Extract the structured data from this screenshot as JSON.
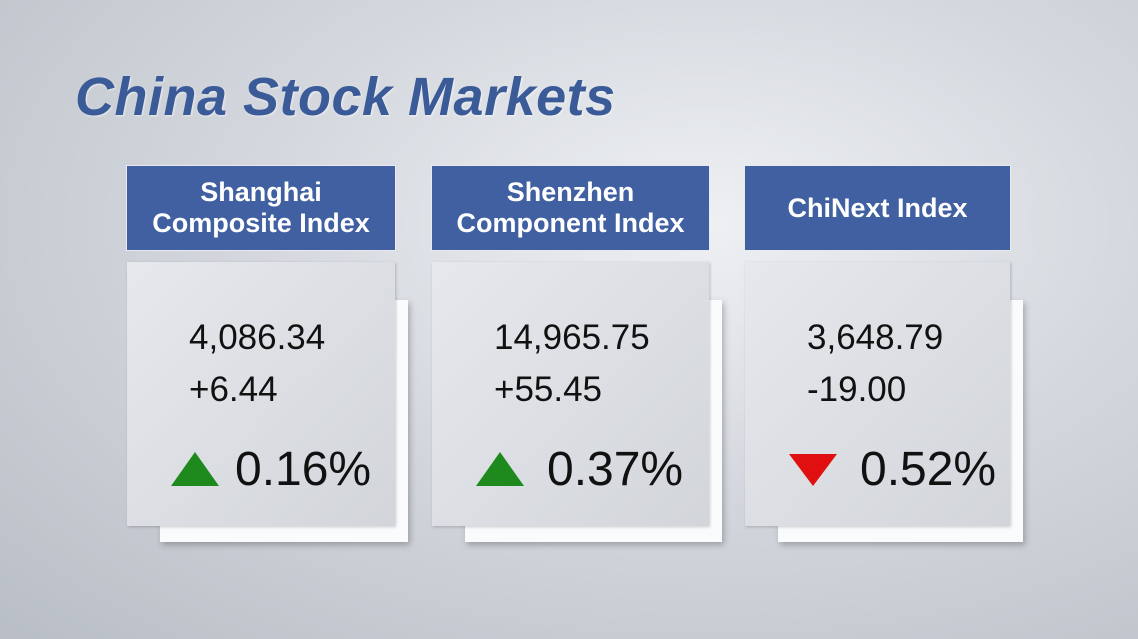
{
  "title": "China Stock Markets",
  "cards": [
    {
      "name": [
        "Shanghai",
        "Composite Index"
      ],
      "value": "4,086.34",
      "change": "+6.44",
      "percent": "0.16%",
      "direction": "up",
      "arrow_color": "#1e8a1e"
    },
    {
      "name": [
        "Shenzhen",
        "Component Index"
      ],
      "value": "14,965.75",
      "change": "+55.45",
      "percent": "0.37%",
      "direction": "up",
      "arrow_color": "#1e8a1e"
    },
    {
      "name": [
        "ChiNext Index"
      ],
      "value": "3,648.79",
      "change": "-19.00",
      "percent": "0.52%",
      "direction": "down",
      "arrow_color": "#e01010"
    }
  ]
}
